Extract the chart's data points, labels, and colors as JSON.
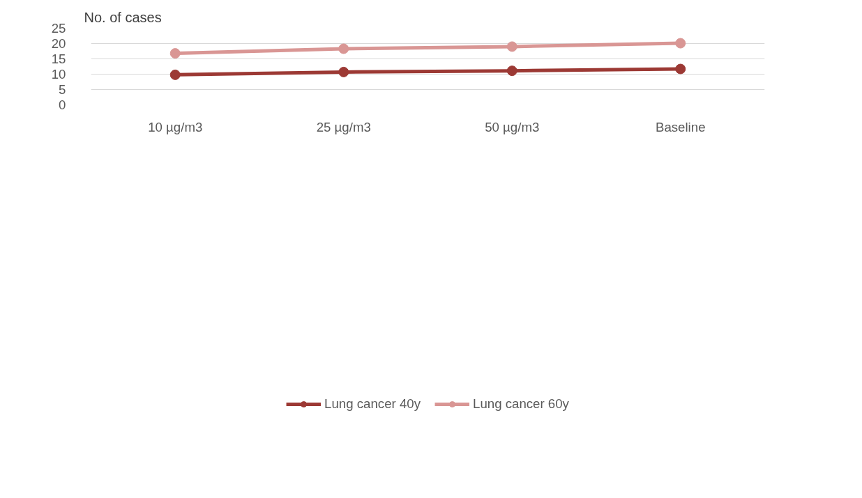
{
  "chart_data": {
    "type": "line",
    "ylabel": "No. of cases",
    "categories": [
      "10 µg/m3",
      "25 µg/m3",
      "50 µg/m3",
      "Baseline"
    ],
    "series": [
      {
        "name": "Lung cancer 40y",
        "color": "#9c3934",
        "values": [
          9.8,
          10.7,
          11.1,
          11.7
        ]
      },
      {
        "name": "Lung cancer 60y",
        "color": "#d99694",
        "values": [
          16.8,
          18.3,
          19.0,
          20.1
        ]
      }
    ],
    "ylim": [
      0,
      25
    ],
    "yticks": [
      0,
      5,
      10,
      15,
      20,
      25
    ],
    "grid": "y",
    "legend": "bottom",
    "marker": "circle",
    "line_style": "solid"
  }
}
